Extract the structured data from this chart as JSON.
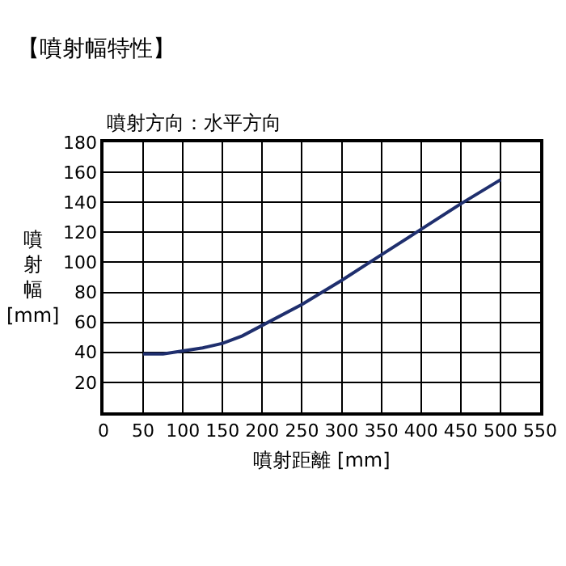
{
  "chart_data": {
    "type": "line",
    "title": "【噴射幅特性】",
    "subtitle": "噴射方向：水平方向",
    "xlabel": "噴射距離 [mm]",
    "ylabel": "噴射幅[mm]",
    "x": [
      50,
      75,
      100,
      125,
      150,
      175,
      200,
      250,
      300,
      350,
      400,
      450,
      500
    ],
    "series": [
      {
        "color": "#1f2f6e",
        "values": [
          39,
          39,
          41,
          43,
          46,
          51,
          58,
          72,
          88,
          105,
          122,
          139,
          155
        ]
      }
    ],
    "xlim": [
      0,
      550
    ],
    "xticks": [
      0,
      50,
      100,
      150,
      200,
      250,
      300,
      350,
      400,
      450,
      500,
      550
    ],
    "ylim": [
      0,
      180
    ],
    "yticks": [
      {
        "value": 0,
        "label": null
      },
      20,
      40,
      60,
      80,
      100,
      120,
      140,
      160,
      180
    ],
    "grid": true,
    "marker": "none",
    "line_style": "solid"
  }
}
